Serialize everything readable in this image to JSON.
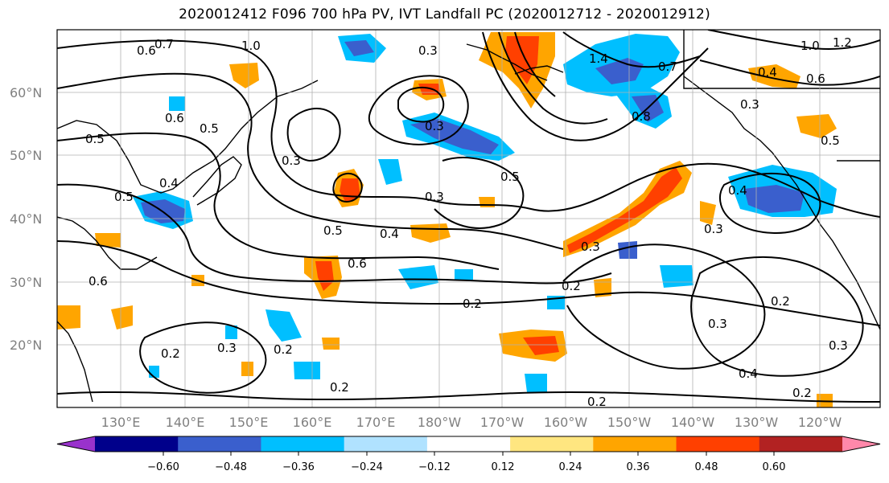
{
  "title": "2020012412 F096 700 hPa PV, IVT Landfall PC (2020012712 - 2020012912)",
  "map": {
    "lon_labels": [
      "130°E",
      "140°E",
      "150°E",
      "160°E",
      "170°E",
      "180°W",
      "170°W",
      "160°W",
      "150°W",
      "140°W",
      "130°W",
      "120°W"
    ],
    "lat_labels": [
      "60°N",
      "50°N",
      "40°N",
      "30°N",
      "20°N"
    ],
    "contour_labels": [
      "0.6",
      "0.7",
      "1.0",
      "0.3",
      "1.4",
      "1.0",
      "1.2",
      "0.7",
      "0.4",
      "0.6",
      "0.5",
      "0.6",
      "0.5",
      "0.3",
      "0.3",
      "0.5",
      "0.8",
      "0.3",
      "0.3",
      "0.4",
      "0.5",
      "0.5",
      "0.3",
      "0.4",
      "0.4",
      "0.5",
      "0.6",
      "0.6",
      "0.3",
      "0.3",
      "0.2",
      "0.2",
      "0.2",
      "0.2",
      "0.3",
      "0.2",
      "0.2",
      "0.4",
      "0.3",
      "0.2",
      "0.2"
    ]
  },
  "colorbar": {
    "ticks": [
      "−0.60",
      "−0.48",
      "−0.36",
      "−0.24",
      "−0.12",
      "0.12",
      "0.24",
      "0.36",
      "0.48",
      "0.60"
    ],
    "colors": [
      "#9932cc",
      "#00008b",
      "#3a5fcd",
      "#00bfff",
      "#b0e2ff",
      "#ffffff",
      "#ffe680",
      "#ffa500",
      "#ff4000",
      "#b22222",
      "#ff88aa"
    ]
  }
}
